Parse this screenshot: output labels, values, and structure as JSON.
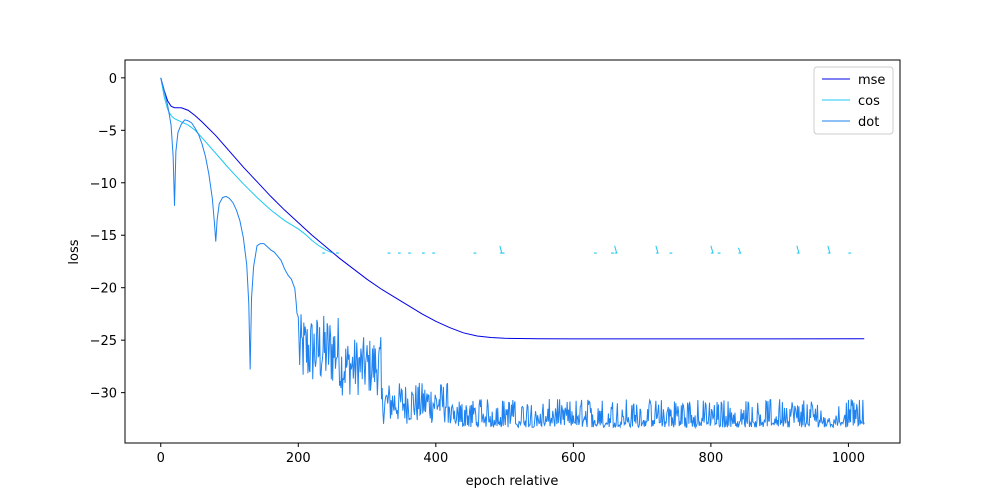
{
  "chart_data": {
    "type": "line",
    "title": "",
    "xlabel": "epoch relative",
    "ylabel": "loss",
    "xlim": [
      -52,
      1075
    ],
    "ylim": [
      -34.8,
      1.7
    ],
    "xticks": [
      0,
      200,
      400,
      600,
      800,
      1000
    ],
    "yticks": [
      0,
      -5,
      -10,
      -15,
      -20,
      -25,
      -30
    ],
    "grid": false,
    "legend_position": "top-right",
    "series": [
      {
        "name": "mse",
        "color": "#0000e6",
        "points": [
          [
            0,
            0
          ],
          [
            5,
            -1.2
          ],
          [
            10,
            -2.2
          ],
          [
            15,
            -2.7
          ],
          [
            20,
            -2.85
          ],
          [
            30,
            -2.85
          ],
          [
            40,
            -3.1
          ],
          [
            50,
            -3.6
          ],
          [
            60,
            -4.2
          ],
          [
            80,
            -5.5
          ],
          [
            100,
            -7.0
          ],
          [
            120,
            -8.5
          ],
          [
            140,
            -9.9
          ],
          [
            160,
            -11.3
          ],
          [
            180,
            -12.6
          ],
          [
            200,
            -13.8
          ],
          [
            220,
            -15.0
          ],
          [
            240,
            -16.1
          ],
          [
            260,
            -17.2
          ],
          [
            280,
            -18.2
          ],
          [
            300,
            -19.2
          ],
          [
            320,
            -20.1
          ],
          [
            340,
            -20.9
          ],
          [
            360,
            -21.7
          ],
          [
            380,
            -22.5
          ],
          [
            400,
            -23.2
          ],
          [
            420,
            -23.8
          ],
          [
            440,
            -24.3
          ],
          [
            460,
            -24.6
          ],
          [
            480,
            -24.75
          ],
          [
            500,
            -24.82
          ],
          [
            550,
            -24.86
          ],
          [
            600,
            -24.88
          ],
          [
            700,
            -24.88
          ],
          [
            800,
            -24.88
          ],
          [
            900,
            -24.88
          ],
          [
            1023,
            -24.86
          ]
        ]
      },
      {
        "name": "cos",
        "color": "#1ec8f0",
        "points": [
          [
            0,
            0
          ],
          [
            5,
            -1.8
          ],
          [
            10,
            -3.0
          ],
          [
            15,
            -3.6
          ],
          [
            20,
            -3.9
          ],
          [
            30,
            -4.2
          ],
          [
            40,
            -4.5
          ],
          [
            50,
            -5.0
          ],
          [
            60,
            -5.7
          ],
          [
            80,
            -7.2
          ],
          [
            100,
            -8.7
          ],
          [
            120,
            -10.1
          ],
          [
            140,
            -11.4
          ],
          [
            160,
            -12.6
          ],
          [
            180,
            -13.6
          ],
          [
            200,
            -14.4
          ],
          [
            210,
            -14.9
          ],
          [
            220,
            -15.5
          ],
          [
            230,
            -16.0
          ],
          [
            240,
            -16.4
          ],
          [
            250,
            -16.7
          ]
        ],
        "spikes": [
          [
            235,
            -16.7
          ],
          [
            255,
            -16.7
          ],
          [
            330,
            -16.7
          ],
          [
            345,
            -16.7
          ],
          [
            360,
            -16.7
          ],
          [
            380,
            -16.7
          ],
          [
            395,
            -16.7
          ],
          [
            455,
            -16.7
          ],
          [
            493,
            -16.0
          ],
          [
            496,
            -16.7
          ],
          [
            630,
            -16.7
          ],
          [
            655,
            -16.7
          ],
          [
            660,
            -16.0
          ],
          [
            720,
            -16.0
          ],
          [
            740,
            -16.7
          ],
          [
            800,
            -16.0
          ],
          [
            810,
            -16.7
          ],
          [
            840,
            -16.2
          ],
          [
            925,
            -16.0
          ],
          [
            970,
            -16.0
          ],
          [
            1000,
            -16.7
          ]
        ]
      },
      {
        "name": "dot",
        "color": "#1e82f0",
        "points": [
          [
            0,
            0
          ],
          [
            5,
            -1.3
          ],
          [
            10,
            -2.6
          ],
          [
            15,
            -4.5
          ],
          [
            18,
            -7.5
          ],
          [
            20,
            -12.2
          ],
          [
            22,
            -7.0
          ],
          [
            25,
            -5.2
          ],
          [
            30,
            -4.4
          ],
          [
            35,
            -4.0
          ],
          [
            40,
            -4.1
          ],
          [
            45,
            -4.3
          ],
          [
            50,
            -4.8
          ],
          [
            55,
            -5.4
          ],
          [
            60,
            -6.3
          ],
          [
            65,
            -7.5
          ],
          [
            70,
            -9.2
          ],
          [
            75,
            -11.5
          ],
          [
            78,
            -13.8
          ],
          [
            80,
            -15.6
          ],
          [
            82,
            -13.5
          ],
          [
            85,
            -12.0
          ],
          [
            90,
            -11.4
          ],
          [
            95,
            -11.3
          ],
          [
            100,
            -11.5
          ],
          [
            105,
            -11.9
          ],
          [
            110,
            -12.6
          ],
          [
            115,
            -13.6
          ],
          [
            120,
            -15.2
          ],
          [
            125,
            -17.8
          ],
          [
            128,
            -21.5
          ],
          [
            130,
            -27.8
          ],
          [
            132,
            -21.0
          ],
          [
            135,
            -18.0
          ],
          [
            140,
            -16.0
          ],
          [
            145,
            -15.8
          ],
          [
            150,
            -15.8
          ],
          [
            155,
            -16.1
          ],
          [
            160,
            -16.4
          ],
          [
            165,
            -16.6
          ],
          [
            170,
            -17.0
          ],
          [
            175,
            -17.4
          ],
          [
            180,
            -18.2
          ],
          [
            185,
            -18.8
          ],
          [
            190,
            -19.2
          ],
          [
            195,
            -20.1
          ],
          [
            197,
            -21.5
          ],
          [
            198,
            -22.4
          ],
          [
            200,
            -22.8
          ]
        ],
        "noise_start": 200,
        "noise_end": 1023,
        "noise_pattern": [
          {
            "x": [
              200,
              260
            ],
            "y_center": -26.0,
            "spread": 3.5
          },
          {
            "x": [
              260,
              320
            ],
            "y_center": -27.5,
            "spread": 2.8
          },
          {
            "x": [
              320,
              420
            ],
            "y_center": -31.0,
            "spread": 2.0
          },
          {
            "x": [
              420,
              1023
            ],
            "y_center": -32.0,
            "spread": 1.4
          }
        ],
        "floor": -33.3
      }
    ]
  }
}
